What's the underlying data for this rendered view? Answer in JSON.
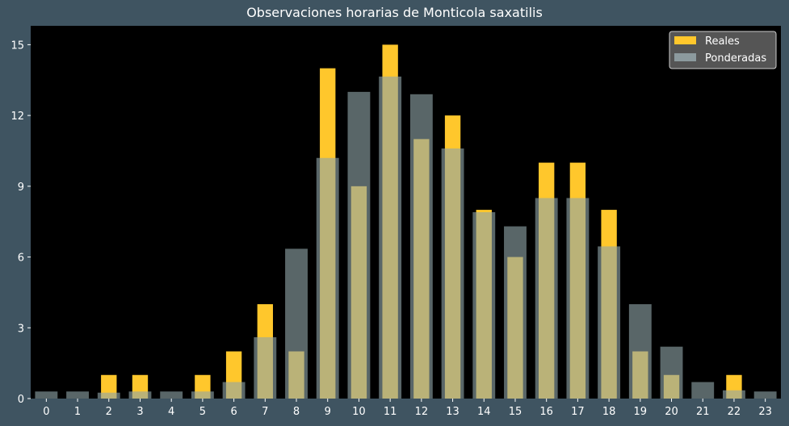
{
  "chart_data": {
    "type": "bar",
    "title": "Observaciones horarias de Monticola saxatilis",
    "xlabel": "",
    "ylabel": "",
    "categories": [
      "0",
      "1",
      "2",
      "3",
      "4",
      "5",
      "6",
      "7",
      "8",
      "9",
      "10",
      "11",
      "12",
      "13",
      "14",
      "15",
      "16",
      "17",
      "18",
      "19",
      "20",
      "21",
      "22",
      "23"
    ],
    "series": [
      {
        "name": "Reales",
        "color": "#ffc72c",
        "values": [
          0,
          0,
          1,
          1,
          0,
          1,
          2,
          4,
          2,
          14,
          9,
          15,
          11,
          12,
          8,
          6,
          10,
          10,
          8,
          2,
          1,
          0,
          1,
          0
        ]
      },
      {
        "name": "Ponderadas",
        "color": "#8fa5a8",
        "values": [
          0.3,
          0.3,
          0.25,
          0.3,
          0.3,
          0.3,
          0.7,
          2.6,
          6.35,
          10.2,
          13.0,
          13.65,
          12.9,
          10.6,
          7.9,
          7.3,
          8.5,
          8.5,
          6.45,
          4.0,
          2.2,
          0.7,
          0.35,
          0.3
        ]
      }
    ],
    "yticks": [
      "0",
      "3",
      "6",
      "9",
      "12",
      "15"
    ],
    "ylim": [
      0,
      15.8
    ],
    "grid": false,
    "legend": "top-right"
  }
}
